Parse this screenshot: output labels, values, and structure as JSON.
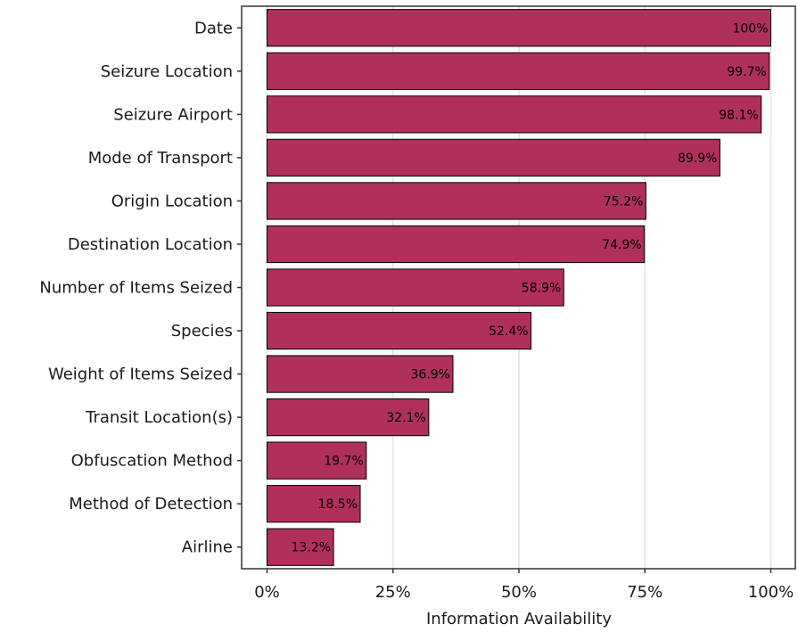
{
  "chart_data": {
    "type": "bar",
    "orientation": "horizontal",
    "title": "",
    "xlabel": "Information Availability",
    "ylabel": "",
    "xlim": [
      0,
      100
    ],
    "x_ticks": [
      0,
      25,
      50,
      75,
      100
    ],
    "x_tick_labels": [
      "0%",
      "25%",
      "50%",
      "75%",
      "100%"
    ],
    "grid": "vertical major lines",
    "legend": "none",
    "categories": [
      "Date",
      "Seizure Location",
      "Seizure Airport",
      "Mode of Transport",
      "Origin Location",
      "Destination Location",
      "Number of Items Seized",
      "Species",
      "Weight of Items Seized",
      "Transit Location(s)",
      "Obfuscation Method",
      "Method of Detection",
      "Airline"
    ],
    "values": [
      100,
      99.7,
      98.1,
      89.9,
      75.2,
      74.9,
      58.9,
      52.4,
      36.9,
      32.1,
      19.7,
      18.5,
      13.2
    ],
    "value_labels": [
      "100%",
      "99.7%",
      "98.1%",
      "89.9%",
      "75.2%",
      "74.9%",
      "58.9%",
      "52.4%",
      "36.9%",
      "32.1%",
      "19.7%",
      "18.5%",
      "13.2%"
    ],
    "colors": {
      "bar_fill": "#b0305c",
      "bar_stroke": "#000000",
      "grid": "#e8e8e8",
      "panel_border": "#333333"
    }
  }
}
